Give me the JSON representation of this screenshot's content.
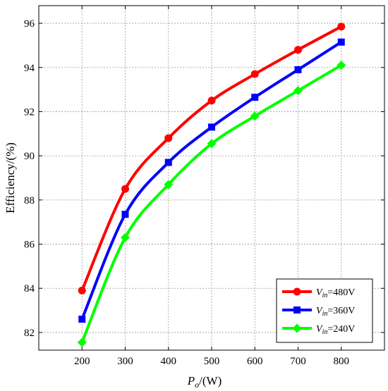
{
  "chart_data": {
    "type": "line",
    "title": "",
    "xlabel": {
      "main": "P",
      "sub": "o",
      "rest": "/(W)"
    },
    "ylabel": "Efficiency/(%)",
    "x": [
      200,
      300,
      400,
      500,
      600,
      700,
      800
    ],
    "xlim": [
      100,
      900
    ],
    "ylim": [
      81.2,
      96.8
    ],
    "xticks": [
      200,
      300,
      400,
      500,
      600,
      700,
      800
    ],
    "yticks": [
      82,
      84,
      86,
      88,
      90,
      92,
      94,
      96
    ],
    "grid": true,
    "legend_position": "bottom-right",
    "series": [
      {
        "name": "480V",
        "name_prefix": "V",
        "name_sub": "in",
        "name_rest": "=480V",
        "color": "#ff0000",
        "marker": "circle",
        "values": [
          83.9,
          88.5,
          90.8,
          92.5,
          93.7,
          94.8,
          95.85
        ]
      },
      {
        "name": "360V",
        "name_prefix": "V",
        "name_sub": "in",
        "name_rest": "=360V",
        "color": "#0000ff",
        "marker": "square",
        "values": [
          82.6,
          87.35,
          89.7,
          91.3,
          92.65,
          93.9,
          95.15
        ]
      },
      {
        "name": "240V",
        "name_prefix": "V",
        "name_sub": "in",
        "name_rest": "=240V",
        "color": "#00ff00",
        "marker": "diamond",
        "values": [
          81.55,
          86.3,
          88.7,
          90.55,
          91.8,
          92.95,
          94.1
        ]
      }
    ]
  }
}
